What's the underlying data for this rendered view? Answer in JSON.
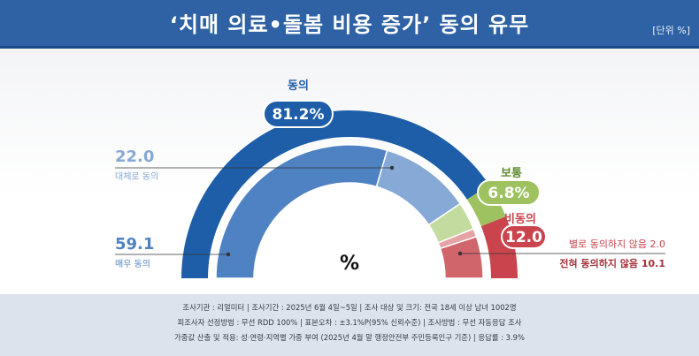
{
  "header": {
    "title": "‘치매 의료•돌봄 비용 증가’ 동의 유무",
    "unit": "[단위 %]"
  },
  "chart_data": {
    "type": "pie",
    "center_label": "%",
    "groups": [
      {
        "name": "동의",
        "value": 81.2,
        "color": "#1e5ea8"
      },
      {
        "name": "보통",
        "value": 6.8,
        "color": "#9ec25f"
      },
      {
        "name": "비동의",
        "value": 12.0,
        "color": "#c9444d"
      }
    ],
    "segments": [
      {
        "name": "매우 동의",
        "value": 59.1,
        "group": "동의",
        "color": "#4f82c2"
      },
      {
        "name": "대체로 동의",
        "value": 22.0,
        "group": "동의",
        "color": "#86a9d6"
      },
      {
        "name": "보통",
        "value": 6.8,
        "group": "보통",
        "color": "#c4dba0"
      },
      {
        "name": "별로 동의하지 않음",
        "value": 2.0,
        "group": "비동의",
        "color": "#e5a3a6"
      },
      {
        "name": "전혀 동의하지 않음",
        "value": 10.1,
        "group": "비동의",
        "color": "#d0656b"
      }
    ]
  },
  "footer": {
    "line1": "조사기관 : 리얼미터  |  조사기간 : 2025년 6월 4일~5일 | 조사 대상 및 크기: 전국 18세 이상 남녀 1002명",
    "line2": "피조사자 선정방법 : 무선 RDD 100% | 표본오차 : ±3.1%P(95% 신뢰수준) | 조사방법 : 무선 자동응답 조사",
    "line3": "가중값 산출 및 적용: 성·연령·지역별 가중 부여 (2025년 4월 말 행정안전부 주민등록인구 기준) | 응답률 : 3.9%"
  }
}
